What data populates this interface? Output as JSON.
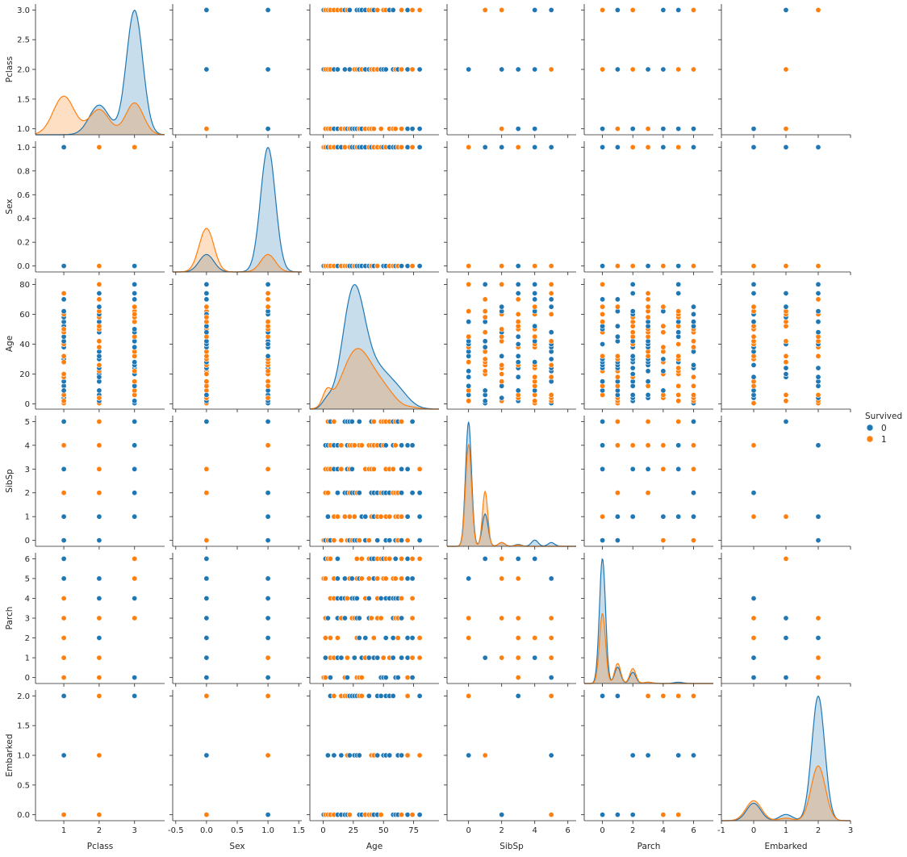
{
  "chart_data": {
    "type": "scatter",
    "subtype": "pairplot",
    "hue": "Survived",
    "legend": {
      "title": "Survived",
      "placement": "right",
      "entries": [
        {
          "label": "0",
          "color": "#1f77b4"
        },
        {
          "label": "1",
          "color": "#ff7f0e"
        }
      ]
    },
    "colors": {
      "0": "#1f77b4",
      "1": "#ff7f0e"
    },
    "variables": [
      {
        "name": "Pclass",
        "lim": [
          0.2,
          3.85
        ],
        "ticks": [
          1,
          2,
          3
        ],
        "ylim": [
          0.9,
          3.1
        ],
        "yticks": [
          1.0,
          1.5,
          2.0,
          2.5,
          3.0
        ]
      },
      {
        "name": "Sex",
        "lim": [
          -0.55,
          1.55
        ],
        "ticks": [
          -0.5,
          0.0,
          0.5,
          1.0,
          1.5
        ],
        "ylim": [
          -0.05,
          1.05
        ],
        "yticks": [
          0.0,
          0.2,
          0.4,
          0.6,
          0.8,
          1.0
        ]
      },
      {
        "name": "Age",
        "lim": [
          -11,
          96
        ],
        "ticks": [
          0,
          25,
          50,
          75
        ],
        "ylim": [
          -3.5,
          84
        ],
        "yticks": [
          0,
          20,
          40,
          60,
          80
        ]
      },
      {
        "name": "SibSp",
        "lim": [
          -1.3,
          6.5
        ],
        "ticks": [
          0,
          2,
          4,
          6
        ],
        "ylim": [
          -0.25,
          5.25
        ],
        "yticks": [
          0,
          1,
          2,
          3,
          4,
          5
        ]
      },
      {
        "name": "Parch",
        "lim": [
          -1.2,
          7.3
        ],
        "ticks": [
          0,
          2,
          4,
          6
        ],
        "ylim": [
          -0.3,
          6.3
        ],
        "yticks": [
          0,
          1,
          2,
          3,
          4,
          5,
          6
        ]
      },
      {
        "name": "Embarked",
        "lim": [
          -1.0,
          3.0
        ],
        "ticks": [
          -1,
          0,
          1,
          2,
          3
        ],
        "ylim": [
          -0.1,
          2.1
        ],
        "yticks": [
          0.0,
          0.5,
          1.0,
          1.5,
          2.0
        ]
      }
    ],
    "kde": {
      "Pclass": {
        "0": [
          [
            1,
            0.0,
            0.3
          ],
          [
            2,
            0.4,
            0.28
          ],
          [
            3,
            1.68,
            0.23
          ]
        ],
        "1": [
          [
            1,
            0.52,
            0.3
          ],
          [
            2,
            0.34,
            0.28
          ],
          [
            3,
            0.43,
            0.25
          ]
        ]
      },
      "Sex": {
        "0": [
          [
            0,
            0.14,
            0.12
          ],
          [
            1,
            1.0,
            0.12
          ]
        ],
        "1": [
          [
            0,
            0.35,
            0.12
          ],
          [
            1,
            0.14,
            0.12
          ]
        ]
      },
      "Age": {
        "0": [
          [
            3,
            0.05,
            4
          ],
          [
            25,
            0.78,
            9
          ],
          [
            45,
            0.28,
            14
          ],
          [
            65,
            0.04,
            8
          ]
        ],
        "1": [
          [
            3,
            0.1,
            3.5
          ],
          [
            28,
            0.42,
            12
          ],
          [
            50,
            0.12,
            10
          ],
          [
            75,
            0.01,
            5
          ]
        ]
      },
      "SibSp": {
        "0": [
          [
            0,
            1.0,
            0.18
          ],
          [
            1,
            0.26,
            0.18
          ],
          [
            2,
            0.03,
            0.2
          ],
          [
            3,
            0.015,
            0.2
          ],
          [
            4,
            0.05,
            0.2
          ],
          [
            5,
            0.03,
            0.2
          ]
        ],
        "1": [
          [
            0,
            0.82,
            0.18
          ],
          [
            1,
            0.44,
            0.16
          ],
          [
            2,
            0.03,
            0.2
          ],
          [
            3,
            0.01,
            0.2
          ]
        ]
      },
      "Parch": {
        "0": [
          [
            0,
            1.0,
            0.2
          ],
          [
            1,
            0.13,
            0.2
          ],
          [
            2,
            0.09,
            0.2
          ],
          [
            3,
            0.01,
            0.3
          ],
          [
            5,
            0.01,
            0.3
          ]
        ],
        "1": [
          [
            0,
            0.56,
            0.2
          ],
          [
            1,
            0.16,
            0.2
          ],
          [
            2,
            0.12,
            0.2
          ],
          [
            3,
            0.01,
            0.3
          ]
        ]
      },
      "Embarked": {
        "0": [
          [
            0,
            0.14,
            0.22
          ],
          [
            1,
            0.05,
            0.2
          ],
          [
            2,
            1.0,
            0.2
          ]
        ],
        "1": [
          [
            0,
            0.16,
            0.24
          ],
          [
            1,
            0.02,
            0.2
          ],
          [
            2,
            0.44,
            0.22
          ]
        ]
      }
    },
    "points": {
      "Pclass": [
        1,
        1,
        2,
        2,
        3,
        3
      ],
      "Sex": [
        0,
        0,
        0,
        1,
        1,
        1
      ],
      "Age": [
        0.5,
        2,
        4,
        6,
        9,
        12,
        15,
        18,
        20,
        22,
        24,
        26,
        28,
        30,
        32,
        35,
        38,
        40,
        42,
        45,
        48,
        50,
        52,
        55,
        58,
        60,
        62,
        65,
        70,
        74,
        80
      ],
      "SibSp": [
        0,
        1,
        2,
        3,
        4,
        5
      ],
      "Parch": [
        0,
        1,
        2,
        3,
        4,
        5,
        6
      ],
      "Embarked": [
        0,
        1,
        2
      ]
    }
  }
}
